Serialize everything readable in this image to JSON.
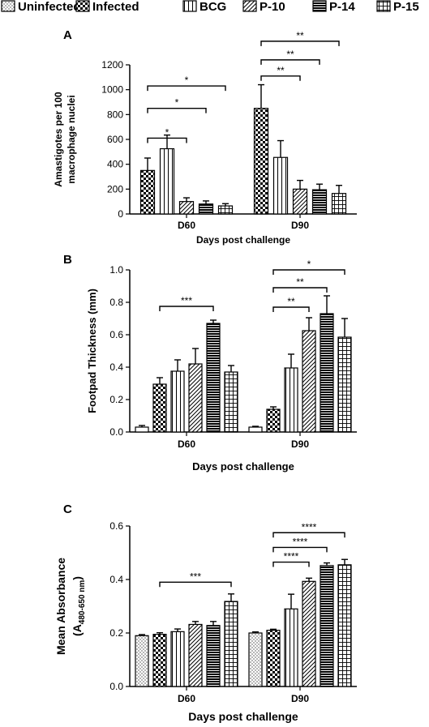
{
  "legend": [
    {
      "name": "Uninfected",
      "pattern": "dots"
    },
    {
      "name": "Infected",
      "pattern": "checker"
    },
    {
      "name": "BCG",
      "pattern": "vlines"
    },
    {
      "name": "P-10",
      "pattern": "diag"
    },
    {
      "name": "P-14",
      "pattern": "brick"
    },
    {
      "name": "P-15",
      "pattern": "grid"
    }
  ],
  "chart_data": [
    {
      "panel": "A",
      "type": "bar",
      "xlabel": "Days post challenge",
      "ylabel": [
        "Amastigotes per 100",
        "macrophage nuclei"
      ],
      "ylim": [
        0,
        1200
      ],
      "yticks": [
        "0",
        "200",
        "400",
        "600",
        "800",
        "1000",
        "1200"
      ],
      "categories": [
        "D60",
        "D90"
      ],
      "series": [
        {
          "name": "Infected",
          "pattern": "checker",
          "values": [
            350,
            850
          ],
          "err": [
            100,
            190
          ]
        },
        {
          "name": "BCG",
          "pattern": "vlines",
          "values": [
            525,
            455
          ],
          "err": [
            110,
            135
          ]
        },
        {
          "name": "P-10",
          "pattern": "diag",
          "values": [
            100,
            200
          ],
          "err": [
            30,
            70
          ]
        },
        {
          "name": "P-14",
          "pattern": "brick",
          "values": [
            80,
            195
          ],
          "err": [
            25,
            45
          ]
        },
        {
          "name": "P-15",
          "pattern": "grid",
          "values": [
            65,
            165
          ],
          "err": [
            18,
            65
          ]
        }
      ],
      "significance": [
        {
          "category": "D60",
          "from": 0,
          "to": 2,
          "label": "*",
          "level": 610
        },
        {
          "category": "D60",
          "from": 0,
          "to": 3,
          "label": "*",
          "level": 850
        },
        {
          "category": "D60",
          "from": 0,
          "to": 4,
          "label": "*",
          "level": 1030
        },
        {
          "category": "D90",
          "from": 0,
          "to": 2,
          "label": "**",
          "level": 1110
        },
        {
          "category": "D90",
          "from": 0,
          "to": 3,
          "label": "**",
          "level": 1240
        },
        {
          "category": "D90",
          "from": 0,
          "to": 4,
          "label": "**",
          "level": 1390
        }
      ]
    },
    {
      "panel": "B",
      "type": "bar",
      "xlabel": "Days post challenge",
      "ylabel": [
        "Footpad Thickness (mm)"
      ],
      "ylim": [
        0,
        1.0
      ],
      "yticks": [
        "0.0",
        "0.2",
        "0.4",
        "0.6",
        "0.8",
        "1.0"
      ],
      "categories": [
        "D60",
        "D90"
      ],
      "series": [
        {
          "name": "Uninfected",
          "pattern": "white",
          "values": [
            0.03,
            0.03
          ],
          "err": [
            0.01,
            0.005
          ]
        },
        {
          "name": "Infected",
          "pattern": "checker",
          "values": [
            0.295,
            0.14
          ],
          "err": [
            0.04,
            0.015
          ]
        },
        {
          "name": "BCG",
          "pattern": "vlines",
          "values": [
            0.375,
            0.395
          ],
          "err": [
            0.07,
            0.085
          ]
        },
        {
          "name": "P-10",
          "pattern": "diag",
          "values": [
            0.42,
            0.625
          ],
          "err": [
            0.095,
            0.08
          ]
        },
        {
          "name": "P-14",
          "pattern": "brick",
          "values": [
            0.67,
            0.73
          ],
          "err": [
            0.02,
            0.11
          ]
        },
        {
          "name": "P-15",
          "pattern": "grid",
          "values": [
            0.37,
            0.585
          ],
          "err": [
            0.04,
            0.115
          ]
        }
      ],
      "significance": [
        {
          "category": "D60",
          "from": 1,
          "to": 4,
          "label": "***",
          "level": 0.775
        },
        {
          "category": "D90",
          "from": 1,
          "to": 3,
          "label": "**",
          "level": 0.77
        },
        {
          "category": "D90",
          "from": 1,
          "to": 4,
          "label": "**",
          "level": 0.89
        },
        {
          "category": "D90",
          "from": 1,
          "to": 5,
          "label": "*",
          "level": 1.0
        }
      ]
    },
    {
      "panel": "C",
      "type": "bar",
      "xlabel": "Days post challenge",
      "ylabel": [
        "Mean Absorbance"
      ],
      "ylabel_sub": {
        "main": "(A",
        "sub": "480-650 nm",
        "end": ")"
      },
      "ylim": [
        0,
        0.6
      ],
      "yticks": [
        "0.0",
        "0.2",
        "0.4",
        "0.6"
      ],
      "categories": [
        "D60",
        "D90"
      ],
      "series": [
        {
          "name": "Uninfected",
          "pattern": "dots",
          "values": [
            0.19,
            0.2
          ],
          "err": [
            0.004,
            0.004
          ]
        },
        {
          "name": "Infected",
          "pattern": "checker",
          "values": [
            0.195,
            0.21
          ],
          "err": [
            0.006,
            0.004
          ]
        },
        {
          "name": "BCG",
          "pattern": "vlines",
          "values": [
            0.205,
            0.29
          ],
          "err": [
            0.01,
            0.055
          ]
        },
        {
          "name": "P-10",
          "pattern": "diag",
          "values": [
            0.232,
            0.393
          ],
          "err": [
            0.011,
            0.012
          ]
        },
        {
          "name": "P-14",
          "pattern": "brick",
          "values": [
            0.228,
            0.452
          ],
          "err": [
            0.015,
            0.01
          ]
        },
        {
          "name": "P-15",
          "pattern": "grid",
          "values": [
            0.318,
            0.455
          ],
          "err": [
            0.028,
            0.02
          ]
        }
      ],
      "significance": [
        {
          "category": "D60",
          "from": 1,
          "to": 5,
          "label": "***",
          "level": 0.39
        },
        {
          "category": "D90",
          "from": 1,
          "to": 3,
          "label": "****",
          "level": 0.465
        },
        {
          "category": "D90",
          "from": 1,
          "to": 4,
          "label": "****",
          "level": 0.52
        },
        {
          "category": "D90",
          "from": 1,
          "to": 5,
          "label": "****",
          "level": 0.575
        }
      ]
    }
  ]
}
